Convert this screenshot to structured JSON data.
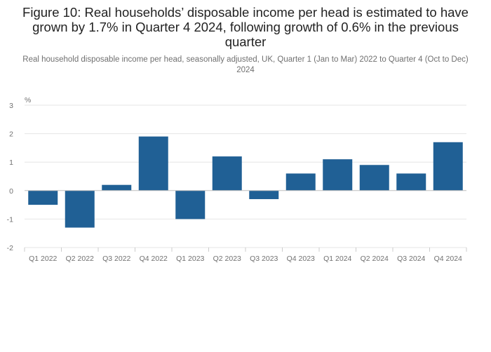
{
  "title": "Figure 10: Real households’ disposable income per head is estimated to have grown by 1.7% in Quarter 4 2024, following growth of 0.6% in the previous quarter",
  "subtitle": "Real household disposable income per head, seasonally adjusted, UK, Quarter 1 (Jan to Mar) 2022 to Quarter 4 (Oct to Dec) 2024",
  "chart_data": {
    "type": "bar",
    "title": "Figure 10: Real households’ disposable income per head is estimated to have grown by 1.7% in Quarter 4 2024, following growth of 0.6% in the previous quarter",
    "subtitle": "Real household disposable income per head, seasonally adjusted, UK, Quarter 1 (Jan to Mar) 2022 to Quarter 4 (Oct to Dec) 2024",
    "ylabel": "%",
    "xlabel": "",
    "categories": [
      "Q1 2022",
      "Q2 2022",
      "Q3 2022",
      "Q4 2022",
      "Q1 2023",
      "Q2 2023",
      "Q3 2023",
      "Q4 2023",
      "Q1 2024",
      "Q2 2024",
      "Q3 2024",
      "Q4 2024"
    ],
    "values": [
      -0.5,
      -1.3,
      0.2,
      1.9,
      -1.0,
      1.2,
      -0.3,
      0.6,
      1.1,
      0.9,
      0.6,
      1.7
    ],
    "ylim": [
      -2,
      3
    ],
    "yticks": [
      3,
      2,
      1,
      0,
      -1,
      -2
    ],
    "grid": true,
    "bar_color": "#206095",
    "grid_color": "#e6e6e6",
    "zero_line_color": "#bdbdbd"
  }
}
